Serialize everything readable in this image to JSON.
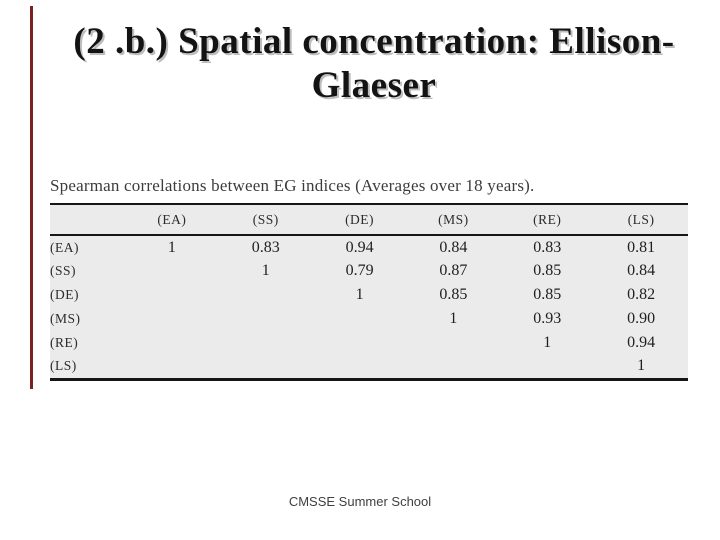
{
  "slide": {
    "title_line1": "(2 .b.) Spatial concentration: Ellison-",
    "title_line2": "Glaeser",
    "footer": "CMSSE Summer School"
  },
  "figure": {
    "caption": "Spearman correlations between EG indices (Averages over 18 years).",
    "table": {
      "columns": [
        "(EA)",
        "(SS)",
        "(DE)",
        "(MS)",
        "(RE)",
        "(LS)"
      ],
      "rows": [
        {
          "label": "(EA)",
          "values": [
            "1",
            "0.83",
            "0.94",
            "0.84",
            "0.83",
            "0.81"
          ]
        },
        {
          "label": "(SS)",
          "values": [
            "",
            "1",
            "0.79",
            "0.87",
            "0.85",
            "0.84"
          ]
        },
        {
          "label": "(DE)",
          "values": [
            "",
            "",
            "1",
            "0.85",
            "0.85",
            "0.82"
          ]
        },
        {
          "label": "(MS)",
          "values": [
            "",
            "",
            "",
            "1",
            "0.93",
            "0.90"
          ]
        },
        {
          "label": "(RE)",
          "values": [
            "",
            "",
            "",
            "",
            "1",
            "0.94"
          ]
        },
        {
          "label": "(LS)",
          "values": [
            "",
            "",
            "",
            "",
            "",
            "1"
          ]
        }
      ]
    }
  },
  "chart_data": {
    "type": "table",
    "title": "Spearman correlations between EG indices (Averages over 18 years).",
    "categories": [
      "(EA)",
      "(SS)",
      "(DE)",
      "(MS)",
      "(RE)",
      "(LS)"
    ],
    "matrix_upper_triangle": [
      [
        1,
        0.83,
        0.94,
        0.84,
        0.83,
        0.81
      ],
      [
        null,
        1,
        0.79,
        0.87,
        0.85,
        0.84
      ],
      [
        null,
        null,
        1,
        0.85,
        0.85,
        0.82
      ],
      [
        null,
        null,
        null,
        1,
        0.93,
        0.9
      ],
      [
        null,
        null,
        null,
        null,
        1,
        0.94
      ],
      [
        null,
        null,
        null,
        null,
        null,
        1
      ]
    ]
  },
  "colors": {
    "accent_bar": "#7b2121",
    "table_background": "#ebebeb",
    "table_border": "#161616",
    "title_text": "#131313"
  }
}
